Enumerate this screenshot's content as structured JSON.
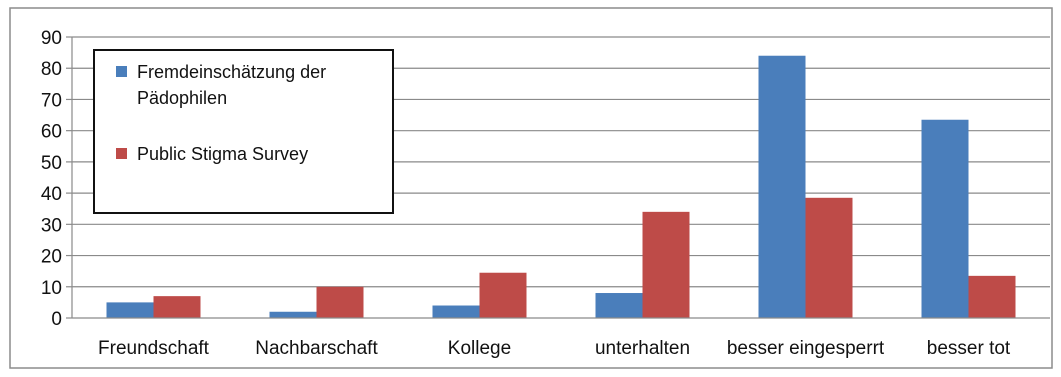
{
  "chart_data": {
    "type": "bar",
    "categories": [
      "Freundschaft",
      "Nachbarschaft",
      "Kollege",
      "unterhalten",
      "besser eingesperrt",
      "besser tot"
    ],
    "series": [
      {
        "name": "Fremdeinschätzung der Pädophilen",
        "values": [
          5,
          2,
          4,
          8,
          84,
          63.5
        ],
        "color": "#4A7EBB"
      },
      {
        "name": "Public Stigma Survey",
        "values": [
          7,
          10,
          14.5,
          34,
          38.5,
          13.5
        ],
        "color": "#BE4B48"
      }
    ],
    "legend_lines": [
      [
        "Fremdeinschätzung der",
        "Pädophilen"
      ],
      [
        "Public Stigma Survey"
      ]
    ],
    "ylim": [
      0,
      90
    ],
    "yticks": [
      0,
      10,
      20,
      30,
      40,
      50,
      60,
      70,
      80,
      90
    ],
    "grid": true,
    "legend_position": "top-left",
    "title": "",
    "xlabel": "",
    "ylabel": ""
  }
}
